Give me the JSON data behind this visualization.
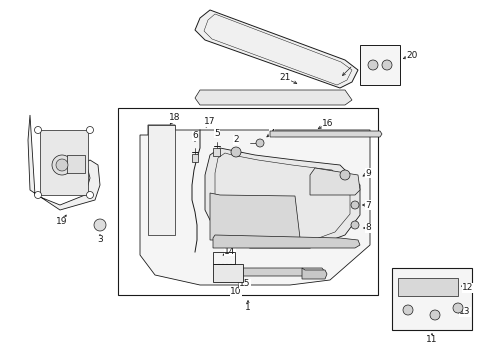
{
  "bg_color": "#ffffff",
  "line_color": "#1a1a1a",
  "fig_width": 4.89,
  "fig_height": 3.6,
  "dpi": 100,
  "lw": 0.6,
  "font_size": 6.5
}
